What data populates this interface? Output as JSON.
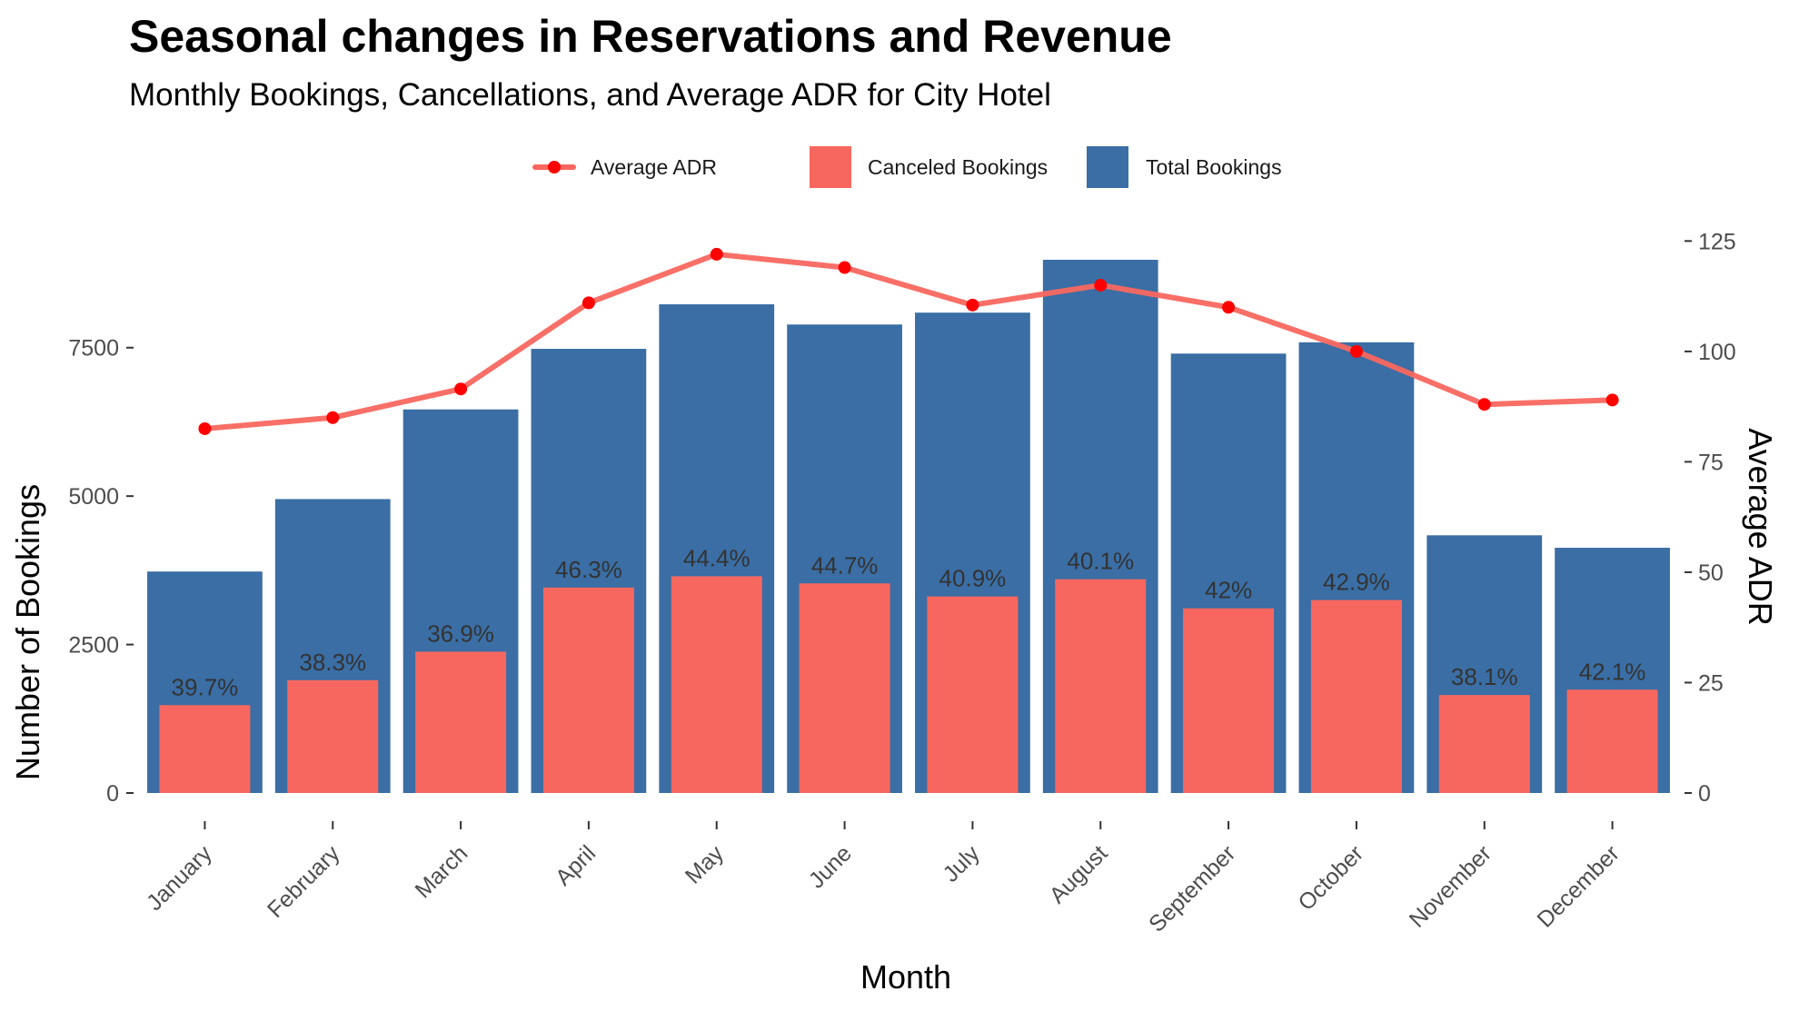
{
  "colors": {
    "total": "#3a6ea5",
    "canceled": "#f8675f",
    "adr_line": "#f8675f",
    "adr_point": "#ff0000"
  },
  "chart_data": {
    "type": "bar",
    "title": "Seasonal changes in Reservations and Revenue",
    "subtitle": "Monthly Bookings, Cancellations, and Average ADR for City Hotel",
    "xlabel": "Month",
    "ylabel": "Number of Bookings",
    "y2label": "Average ADR",
    "ylim": [
      0,
      9300
    ],
    "y2lim": [
      0,
      125
    ],
    "yticks": [
      0,
      2500,
      5000,
      7500
    ],
    "y2ticks": [
      0,
      25,
      50,
      75,
      100,
      125
    ],
    "legend_position": "top",
    "grid": false,
    "categories": [
      "January",
      "February",
      "March",
      "April",
      "May",
      "June",
      "July",
      "August",
      "September",
      "October",
      "November",
      "December"
    ],
    "series": [
      {
        "name": "Total Bookings",
        "type": "bar",
        "axis": "left",
        "values": [
          3730,
          4950,
          6460,
          7480,
          8230,
          7890,
          8090,
          8980,
          7400,
          7590,
          4340,
          4130
        ]
      },
      {
        "name": "Canceled Bookings",
        "type": "bar",
        "axis": "left",
        "values": [
          1480,
          1900,
          2380,
          3460,
          3650,
          3530,
          3310,
          3600,
          3110,
          3250,
          1650,
          1740
        ]
      },
      {
        "name": "Average ADR",
        "type": "line",
        "axis": "right",
        "values": [
          82.5,
          85.0,
          91.5,
          111.0,
          122.0,
          119.0,
          110.5,
          115.0,
          110.0,
          100.0,
          88.0,
          89.0
        ]
      }
    ],
    "data_labels": [
      "39.7%",
      "38.3%",
      "36.9%",
      "46.3%",
      "44.4%",
      "44.7%",
      "40.9%",
      "40.1%",
      "42%",
      "42.9%",
      "38.1%",
      "42.1%"
    ]
  }
}
